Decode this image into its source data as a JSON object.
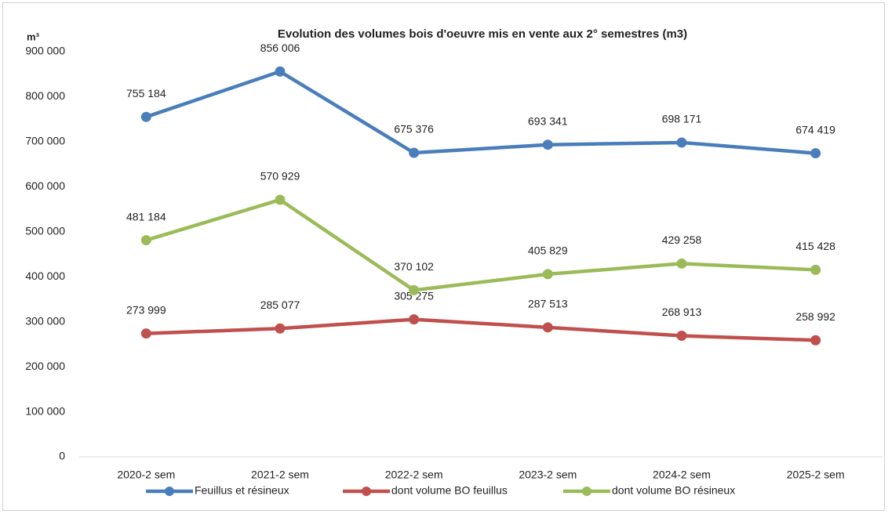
{
  "chart_data": {
    "type": "line",
    "title": "Evolution des volumes bois d'oeuvre mis en vente aux 2° semestres (m3)",
    "y_label": "m³",
    "categories": [
      "2020-2 sem",
      "2021-2 sem",
      "2022-2 sem",
      "2023-2 sem",
      "2024-2 sem",
      "2025-2 sem"
    ],
    "series": [
      {
        "name": "Feuillus et résineux",
        "color": "#4a7ebb",
        "values": [
          755184,
          856006,
          675376,
          693341,
          698171,
          674419
        ],
        "value_labels": [
          "755 184",
          "856 006",
          "675 376",
          "693 341",
          "698 171",
          "674 419"
        ]
      },
      {
        "name": "dont volume BO feuillus",
        "color": "#c0504d",
        "values": [
          273999,
          285077,
          305275,
          287513,
          268913,
          258992
        ],
        "value_labels": [
          "273 999",
          "285 077",
          "305 275",
          "287 513",
          "268 913",
          "258 992"
        ]
      },
      {
        "name": "dont volume BO résineux",
        "color": "#9bbb59",
        "values": [
          481184,
          570929,
          370102,
          405829,
          429258,
          415428
        ],
        "value_labels": [
          "481 184",
          "570 929",
          "370 102",
          "405 829",
          "429 258",
          "415 428"
        ]
      }
    ],
    "ylim": [
      0,
      900000
    ],
    "yticks": [
      0,
      {
        "value": 100000,
        "label": "100 000"
      },
      {
        "value": 200000,
        "label": "200 000"
      },
      {
        "value": 300000,
        "label": "300 000"
      },
      {
        "value": 400000,
        "label": "400 000"
      },
      {
        "value": 500000,
        "label": "500 000"
      },
      {
        "value": 600000,
        "label": "600 000"
      },
      {
        "value": 700000,
        "label": "700 000"
      },
      {
        "value": 800000,
        "label": "800 000"
      },
      {
        "value": 900000,
        "label": "900 000"
      }
    ],
    "grid": false,
    "legend": "bottom"
  }
}
